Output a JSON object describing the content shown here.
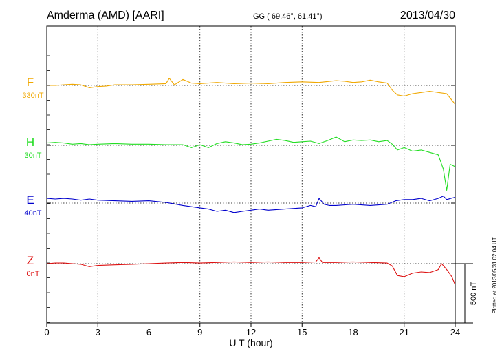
{
  "header": {
    "station": "Amderma (AMD)  [AARI]",
    "coords": "GG ( 69.46°,  61.41°)",
    "date": "2013/04/30"
  },
  "side_note": "Plotted at 2013/05/31 02:04 UT",
  "chart_data": {
    "type": "line",
    "title": "Amderma (AMD)  [AARI]",
    "xlabel": "U T (hour)",
    "xlim": [
      0,
      24
    ],
    "xticks": [
      0,
      3,
      6,
      9,
      12,
      15,
      18,
      21,
      24
    ],
    "xtick_labels": [
      "0",
      "3",
      "6",
      "9",
      "12",
      "15",
      "18",
      "21",
      "24"
    ],
    "grid": true,
    "scale_bar": {
      "label": "500 nT",
      "value_nT": 500
    },
    "series": [
      {
        "name": "F",
        "baseline": "330nT",
        "baseline_nT": 330,
        "color": "#f0a800",
        "x": [
          0,
          0.5,
          1,
          1.5,
          2,
          2.5,
          3,
          3.5,
          4,
          5,
          6,
          7,
          7.2,
          7.5,
          8,
          8.5,
          9,
          9.5,
          10,
          11,
          12,
          13,
          14,
          15,
          16,
          17,
          17.5,
          18,
          18.5,
          19,
          19.5,
          20,
          20.3,
          20.6,
          21,
          21.5,
          22,
          22.5,
          23,
          23.5,
          24
        ],
        "values": [
          0,
          0,
          5,
          10,
          5,
          -20,
          -10,
          -5,
          5,
          5,
          10,
          15,
          60,
          5,
          50,
          20,
          15,
          20,
          25,
          15,
          20,
          15,
          25,
          30,
          25,
          40,
          35,
          25,
          30,
          45,
          30,
          20,
          -40,
          -80,
          -90,
          -70,
          -60,
          -50,
          -60,
          -70,
          -160
        ]
      },
      {
        "name": "H",
        "baseline": "30nT",
        "baseline_nT": 30,
        "color": "#22dd22",
        "x": [
          0,
          0.5,
          1,
          1.5,
          2,
          2.5,
          3,
          4,
          5,
          6,
          7,
          8,
          8.5,
          9,
          9.5,
          10,
          10.5,
          11,
          11.5,
          12,
          12.5,
          13,
          13.5,
          14,
          14.5,
          15,
          15.5,
          16,
          16.5,
          17,
          17.5,
          18,
          18.5,
          19,
          19.5,
          20,
          20.3,
          20.6,
          21,
          21.5,
          22,
          22.5,
          23,
          23.3,
          23.5,
          23.7,
          24
        ],
        "values": [
          20,
          25,
          20,
          10,
          15,
          5,
          10,
          15,
          10,
          10,
          5,
          5,
          -20,
          5,
          -20,
          15,
          30,
          20,
          5,
          10,
          20,
          35,
          50,
          40,
          25,
          30,
          35,
          15,
          40,
          70,
          30,
          45,
          40,
          45,
          30,
          40,
          10,
          -40,
          -20,
          -50,
          -40,
          -60,
          -80,
          -200,
          -380,
          -160,
          -180
        ]
      },
      {
        "name": "E",
        "baseline": "40nT",
        "baseline_nT": 40,
        "color": "#0000cc",
        "x": [
          0,
          0.5,
          1,
          1.5,
          2,
          2.5,
          3,
          4,
          5,
          6,
          7,
          8,
          9,
          9.5,
          10,
          10.5,
          11,
          11.5,
          12,
          12.5,
          13,
          14,
          15,
          15.5,
          15.8,
          16,
          16.3,
          16.6,
          17,
          18,
          19,
          20,
          20.5,
          21,
          21.5,
          22,
          22.5,
          23,
          23.3,
          23.5,
          24
        ],
        "values": [
          40,
          35,
          40,
          35,
          25,
          35,
          25,
          20,
          15,
          20,
          5,
          -20,
          -40,
          -50,
          -70,
          -60,
          -80,
          -70,
          -60,
          -50,
          -60,
          -50,
          -40,
          -20,
          -30,
          40,
          -10,
          -20,
          -20,
          -10,
          -20,
          -10,
          20,
          30,
          30,
          40,
          20,
          40,
          60,
          30,
          50
        ]
      },
      {
        "name": "Z",
        "baseline": "0nT",
        "baseline_nT": 0,
        "color": "#dd1111",
        "x": [
          0,
          0.5,
          1,
          1.5,
          2,
          2.5,
          3,
          4,
          5,
          6,
          7,
          8,
          9,
          10,
          11,
          12,
          13,
          14,
          15,
          15.8,
          16,
          16.2,
          17,
          18,
          19,
          20,
          20.3,
          20.6,
          21,
          21.5,
          22,
          22.5,
          23,
          23.2,
          23.5,
          23.8,
          24
        ],
        "values": [
          0,
          5,
          5,
          0,
          -5,
          -25,
          -15,
          -10,
          -5,
          0,
          5,
          10,
          5,
          10,
          15,
          10,
          15,
          10,
          10,
          15,
          50,
          10,
          10,
          15,
          10,
          5,
          -20,
          -100,
          -110,
          -80,
          -70,
          -75,
          -50,
          0,
          -50,
          -110,
          -180
        ]
      }
    ]
  }
}
